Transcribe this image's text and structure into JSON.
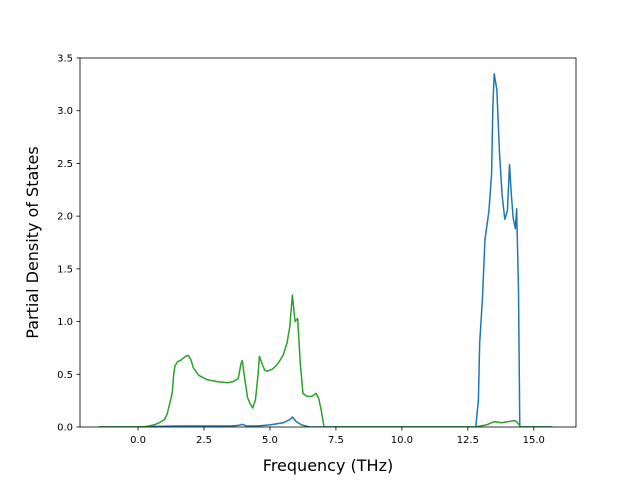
{
  "chart_data": {
    "type": "line",
    "title": "",
    "xlabel": "Frequency (THz)",
    "ylabel": "Partial Density of States",
    "xlim": [
      -2.2,
      16.6
    ],
    "ylim": [
      0,
      3.5
    ],
    "x_ticks": [
      0.0,
      2.5,
      5.0,
      7.5,
      10.0,
      12.5,
      15.0
    ],
    "x_tick_labels": [
      "0.0",
      "2.5",
      "5.0",
      "7.5",
      "10.0",
      "12.5",
      "15.0"
    ],
    "y_ticks": [
      0.0,
      0.5,
      1.0,
      1.5,
      2.0,
      2.5,
      3.0,
      3.5
    ],
    "y_tick_labels": [
      "0.0",
      "0.5",
      "1.0",
      "1.5",
      "2.0",
      "2.5",
      "3.0",
      "3.5"
    ],
    "grid": false,
    "legend": "none",
    "series": [
      {
        "color": "#1f77b4",
        "points": [
          [
            -1.5,
            0.0
          ],
          [
            0.0,
            0.0
          ],
          [
            0.5,
            0.005
          ],
          [
            1.5,
            0.01
          ],
          [
            2.5,
            0.01
          ],
          [
            3.5,
            0.01
          ],
          [
            3.8,
            0.015
          ],
          [
            3.95,
            0.025
          ],
          [
            4.1,
            0.01
          ],
          [
            4.5,
            0.01
          ],
          [
            5.0,
            0.02
          ],
          [
            5.5,
            0.04
          ],
          [
            5.75,
            0.07
          ],
          [
            5.85,
            0.095
          ],
          [
            6.0,
            0.05
          ],
          [
            6.2,
            0.02
          ],
          [
            6.5,
            0.0
          ],
          [
            7.0,
            0.0
          ],
          [
            10.0,
            0.0
          ],
          [
            12.8,
            0.0
          ],
          [
            12.9,
            0.25
          ],
          [
            12.95,
            0.8
          ],
          [
            13.05,
            1.2
          ],
          [
            13.15,
            1.78
          ],
          [
            13.3,
            2.05
          ],
          [
            13.4,
            2.4
          ],
          [
            13.45,
            3.05
          ],
          [
            13.5,
            3.35
          ],
          [
            13.6,
            3.2
          ],
          [
            13.7,
            2.6
          ],
          [
            13.8,
            2.2
          ],
          [
            13.9,
            1.97
          ],
          [
            14.0,
            2.05
          ],
          [
            14.08,
            2.49
          ],
          [
            14.15,
            2.2
          ],
          [
            14.22,
            1.98
          ],
          [
            14.3,
            1.88
          ],
          [
            14.35,
            2.07
          ],
          [
            14.42,
            1.3
          ],
          [
            14.47,
            0.0
          ],
          [
            15.0,
            0.0
          ],
          [
            15.7,
            0.0
          ]
        ]
      },
      {
        "color": "#2ca02c",
        "points": [
          [
            -1.5,
            0.0
          ],
          [
            0.0,
            0.0
          ],
          [
            0.3,
            0.005
          ],
          [
            0.6,
            0.02
          ],
          [
            0.8,
            0.04
          ],
          [
            1.0,
            0.07
          ],
          [
            1.1,
            0.12
          ],
          [
            1.2,
            0.22
          ],
          [
            1.3,
            0.33
          ],
          [
            1.35,
            0.5
          ],
          [
            1.4,
            0.58
          ],
          [
            1.5,
            0.62
          ],
          [
            1.6,
            0.63
          ],
          [
            1.7,
            0.65
          ],
          [
            1.8,
            0.67
          ],
          [
            1.9,
            0.68
          ],
          [
            2.0,
            0.64
          ],
          [
            2.1,
            0.56
          ],
          [
            2.3,
            0.49
          ],
          [
            2.6,
            0.45
          ],
          [
            3.0,
            0.43
          ],
          [
            3.4,
            0.42
          ],
          [
            3.6,
            0.43
          ],
          [
            3.8,
            0.46
          ],
          [
            3.9,
            0.6
          ],
          [
            3.95,
            0.63
          ],
          [
            4.05,
            0.45
          ],
          [
            4.15,
            0.28
          ],
          [
            4.25,
            0.22
          ],
          [
            4.35,
            0.18
          ],
          [
            4.45,
            0.26
          ],
          [
            4.55,
            0.5
          ],
          [
            4.6,
            0.67
          ],
          [
            4.7,
            0.6
          ],
          [
            4.8,
            0.54
          ],
          [
            4.9,
            0.53
          ],
          [
            5.1,
            0.55
          ],
          [
            5.3,
            0.6
          ],
          [
            5.5,
            0.68
          ],
          [
            5.65,
            0.8
          ],
          [
            5.75,
            0.95
          ],
          [
            5.85,
            1.25
          ],
          [
            5.95,
            1.0
          ],
          [
            6.05,
            1.03
          ],
          [
            6.15,
            0.6
          ],
          [
            6.25,
            0.32
          ],
          [
            6.4,
            0.29
          ],
          [
            6.6,
            0.29
          ],
          [
            6.75,
            0.32
          ],
          [
            6.85,
            0.27
          ],
          [
            6.95,
            0.15
          ],
          [
            7.05,
            0.0
          ],
          [
            10.0,
            0.0
          ],
          [
            12.8,
            0.0
          ],
          [
            13.2,
            0.02
          ],
          [
            13.5,
            0.05
          ],
          [
            13.8,
            0.04
          ],
          [
            14.0,
            0.05
          ],
          [
            14.3,
            0.06
          ],
          [
            14.45,
            0.02
          ],
          [
            14.5,
            0.0
          ],
          [
            15.0,
            0.0
          ],
          [
            15.7,
            0.0
          ]
        ]
      }
    ]
  }
}
